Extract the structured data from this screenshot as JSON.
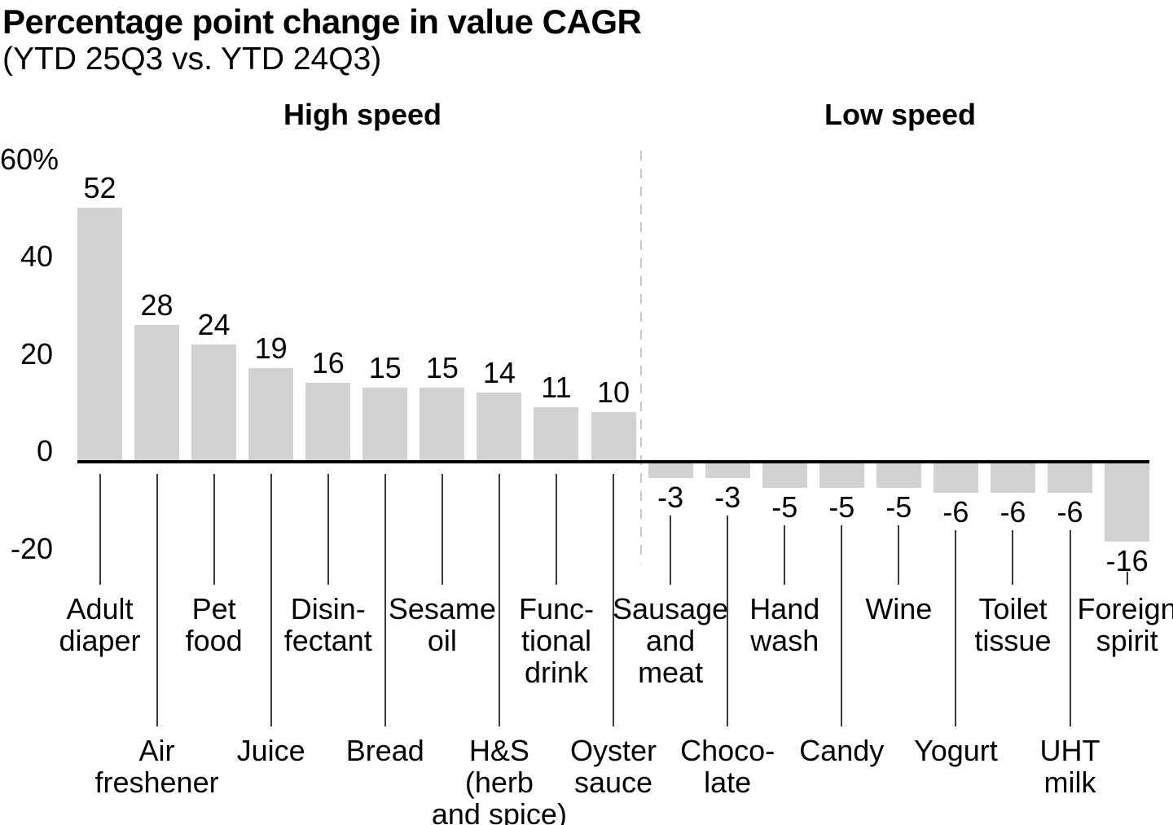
{
  "chart_data": {
    "type": "bar",
    "title": "Percentage point change in value CAGR",
    "subtitle": "(YTD 25Q3 vs. YTD 24Q3)",
    "xlabel": "",
    "ylabel": "",
    "unit": "%",
    "ylim": [
      -20,
      60
    ],
    "grid": false,
    "legend": null,
    "y_ticks": [
      {
        "label": "60%",
        "value": 60
      },
      {
        "label": "40",
        "value": 40
      },
      {
        "label": "20",
        "value": 20
      },
      {
        "label": "0",
        "value": 0
      },
      {
        "label": "-20",
        "value": -20
      }
    ],
    "groups": [
      {
        "label": "High speed",
        "categories": [
          "Adult diaper",
          "Air freshener",
          "Pet food",
          "Juice",
          "Disinfectant",
          "Bread",
          "Sesame oil",
          "H&S (herb and spice)",
          "Functional drink",
          "Oyster sauce"
        ],
        "values": [
          52,
          28,
          24,
          19,
          16,
          15,
          15,
          14,
          11,
          10
        ]
      },
      {
        "label": "Low speed",
        "categories": [
          "Sausage and meat",
          "Chocolate",
          "Hand wash",
          "Candy",
          "Wine",
          "Yogurt",
          "Toilet tissue",
          "UHT milk",
          "Foreign spirit"
        ],
        "values": [
          -3,
          -3,
          -5,
          -5,
          -5,
          -6,
          -6,
          -6,
          -16
        ]
      }
    ],
    "divider": {
      "style": "dashed-vertical-line",
      "between": [
        "High speed",
        "Low speed"
      ]
    },
    "bars": [
      {
        "category": "Adult diaper",
        "lines": [
          "Adult",
          "diaper"
        ],
        "value": 52,
        "value_label": "52",
        "group": "High speed",
        "label_row": "upper"
      },
      {
        "category": "Air freshener",
        "lines": [
          "Air",
          "freshener"
        ],
        "value": 28,
        "value_label": "28",
        "group": "High speed",
        "label_row": "lower"
      },
      {
        "category": "Pet food",
        "lines": [
          "Pet",
          "food"
        ],
        "value": 24,
        "value_label": "24",
        "group": "High speed",
        "label_row": "upper"
      },
      {
        "category": "Juice",
        "lines": [
          "Juice"
        ],
        "value": 19,
        "value_label": "19",
        "group": "High speed",
        "label_row": "lower"
      },
      {
        "category": "Disinfectant",
        "lines": [
          "Disin-",
          "fectant"
        ],
        "value": 16,
        "value_label": "16",
        "group": "High speed",
        "label_row": "upper"
      },
      {
        "category": "Bread",
        "lines": [
          "Bread"
        ],
        "value": 15,
        "value_label": "15",
        "group": "High speed",
        "label_row": "lower"
      },
      {
        "category": "Sesame oil",
        "lines": [
          "Sesame",
          "oil"
        ],
        "value": 15,
        "value_label": "15",
        "group": "High speed",
        "label_row": "upper"
      },
      {
        "category": "H&S (herb and spice)",
        "lines": [
          "H&S",
          "(herb",
          "and spice)"
        ],
        "value": 14,
        "value_label": "14",
        "group": "High speed",
        "label_row": "lower"
      },
      {
        "category": "Functional drink",
        "lines": [
          "Func-",
          "tional",
          "drink"
        ],
        "value": 11,
        "value_label": "11",
        "group": "High speed",
        "label_row": "upper"
      },
      {
        "category": "Oyster sauce",
        "lines": [
          "Oyster",
          "sauce"
        ],
        "value": 10,
        "value_label": "10",
        "group": "High speed",
        "label_row": "lower"
      },
      {
        "category": "Sausage and meat",
        "lines": [
          "Sausage",
          "and",
          "meat"
        ],
        "value": -3,
        "value_label": "-3",
        "group": "Low speed",
        "label_row": "upper"
      },
      {
        "category": "Chocolate",
        "lines": [
          "Choco-",
          "late"
        ],
        "value": -3,
        "value_label": "-3",
        "group": "Low speed",
        "label_row": "lower"
      },
      {
        "category": "Hand wash",
        "lines": [
          "Hand",
          "wash"
        ],
        "value": -5,
        "value_label": "-5",
        "group": "Low speed",
        "label_row": "upper"
      },
      {
        "category": "Candy",
        "lines": [
          "Candy"
        ],
        "value": -5,
        "value_label": "-5",
        "group": "Low speed",
        "label_row": "lower"
      },
      {
        "category": "Wine",
        "lines": [
          "Wine"
        ],
        "value": -5,
        "value_label": "-5",
        "group": "Low speed",
        "label_row": "upper"
      },
      {
        "category": "Yogurt",
        "lines": [
          "Yogurt"
        ],
        "value": -6,
        "value_label": "-6",
        "group": "Low speed",
        "label_row": "lower"
      },
      {
        "category": "Toilet tissue",
        "lines": [
          "Toilet",
          "tissue"
        ],
        "value": -6,
        "value_label": "-6",
        "group": "Low speed",
        "label_row": "upper"
      },
      {
        "category": "UHT milk",
        "lines": [
          "UHT",
          "milk"
        ],
        "value": -6,
        "value_label": "-6",
        "group": "Low speed",
        "label_row": "lower"
      },
      {
        "category": "Foreign spirit",
        "lines": [
          "Foreign",
          "spirit"
        ],
        "value": -16,
        "value_label": "-16",
        "group": "Low speed",
        "label_row": "upper"
      }
    ],
    "colors": {
      "background": "#ffffff",
      "bar_fill": "#d3d2d0",
      "axis_line": "#000000",
      "divider_dashed": "#c9c9c9",
      "leader_line": "#3a3a3a",
      "text": "#000000"
    }
  }
}
